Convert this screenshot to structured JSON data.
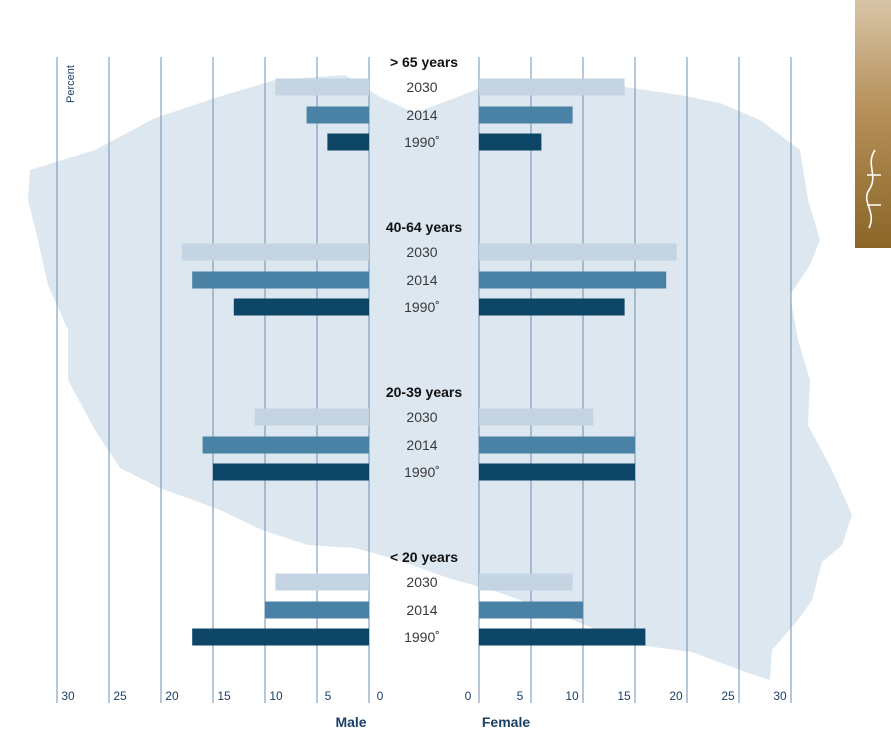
{
  "chart_data": {
    "type": "bar",
    "orientation": "horizontal-population-pyramid",
    "axis_unit_label": "Percent",
    "left_label": "Male",
    "right_label": "Female",
    "male_ticks": [
      "30",
      "25",
      "20",
      "15",
      "10",
      "5",
      "0"
    ],
    "female_ticks": [
      "0",
      "5",
      "10",
      "15",
      "20",
      "25",
      "30"
    ],
    "xlim": [
      0,
      30
    ],
    "grid": true,
    "groups": [
      {
        "label": "> 65 years",
        "bars": [
          {
            "year": "2030",
            "male": 9,
            "female": 14
          },
          {
            "year": "2014",
            "male": 6,
            "female": 9
          },
          {
            "year": "1990*",
            "male": 4,
            "female": 6
          }
        ]
      },
      {
        "label": "40-64 years",
        "bars": [
          {
            "year": "2030",
            "male": 18,
            "female": 19
          },
          {
            "year": "2014",
            "male": 17,
            "female": 18
          },
          {
            "year": "1990*",
            "male": 13,
            "female": 14
          }
        ]
      },
      {
        "label": "20-39 years",
        "bars": [
          {
            "year": "2030",
            "male": 11,
            "female": 11
          },
          {
            "year": "2014",
            "male": 16,
            "female": 15
          },
          {
            "year": "1990*",
            "male": 15,
            "female": 15
          }
        ]
      },
      {
        "label": "< 20 years",
        "bars": [
          {
            "year": "2030",
            "male": 9,
            "female": 9
          },
          {
            "year": "2014",
            "male": 10,
            "female": 10
          },
          {
            "year": "1990*",
            "male": 17,
            "female": 16
          }
        ]
      }
    ],
    "colors": {
      "2030": "#c4d4e3",
      "2014": "#4a82a6",
      "1990*": "#0d4566"
    }
  },
  "decoration": {
    "map_color": "#dde7f0",
    "grid_color": "#6d8faf",
    "text_color": "#1c3f66"
  }
}
